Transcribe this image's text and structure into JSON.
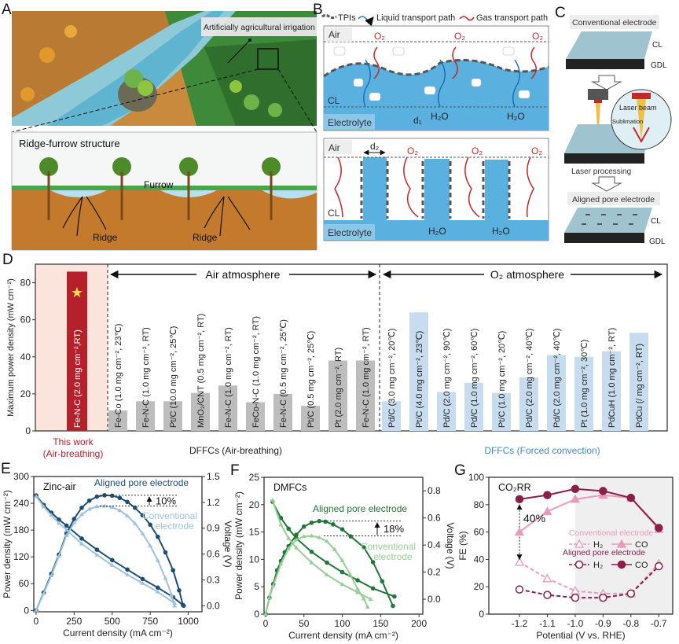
{
  "panels": {
    "A": {
      "letter": "A",
      "title": "Artificially agricultural irrigation",
      "inset_title": "Ridge-furrow structure",
      "furrow": "Furrow",
      "ridge_1": "Ridge",
      "ridge_2": "Ridge"
    },
    "B": {
      "letter": "B",
      "legend": {
        "tpi": "TPIs",
        "liquid": "Liquid transport path",
        "gas": "Gas transport path"
      },
      "top": {
        "air": "Air",
        "cl": "CL",
        "electrolyte": "Electrolyte",
        "o2": "O₂",
        "h2o": "H₂O",
        "d": "d₁"
      },
      "bottom": {
        "air": "Air",
        "cl": "CL",
        "electrolyte": "Electrolyte",
        "o2": "O₂",
        "h2o": "H₂O",
        "d": "d₂"
      }
    },
    "C": {
      "letter": "C",
      "conventional": "Conventional electrode",
      "cl": "CL",
      "gdl": "GDL",
      "laser_beam": "Laser beam",
      "sublimation": "Sublimation",
      "laser_processing": "Laser processing",
      "aligned": "Aligned pore electrode"
    },
    "D": {
      "letter": "D"
    },
    "E": {
      "letter": "E"
    },
    "F": {
      "letter": "F"
    },
    "G": {
      "letter": "G"
    }
  },
  "colors": {
    "this_work": "#b5202b",
    "this_work_bg": "#fbe4dc",
    "air": "#bdbdbd",
    "o2": "#c7dcee",
    "forced_text": "#3d8bc6",
    "zn_aligned": "#1d4e72",
    "zn_conv": "#9cc2df",
    "dm_aligned": "#23773a",
    "dm_conv": "#94cf94",
    "co2_aligned": "#8a1f4c",
    "co2_conv": "#e89bba"
  },
  "chart_data": [
    {
      "panel": "D",
      "type": "bar",
      "ylabel": "Maximum power density (mW cm⁻²)",
      "ylim": [
        0,
        90
      ],
      "yticks": [
        "0",
        "20",
        "40",
        "60",
        "80"
      ],
      "annotations": {
        "air": "Air atmosphere",
        "o2": "O₂ atmosphere",
        "this_work": "This work",
        "this_work_sub": "(Air-breathing)",
        "air_group": "DFFCs (Air-breathing)",
        "forced_group": "DFFCs (Forced convection)"
      },
      "bars": [
        {
          "label": "Fe-N-C (2.0 mg cm⁻²,RT)",
          "value": 86,
          "group": "this_work"
        },
        {
          "label": "Fe-Co (1.0 mg cm⁻², 23℃)",
          "value": 11,
          "group": "air"
        },
        {
          "label": "Fe-N-C (1.0 mg cm⁻², RT)",
          "value": 16,
          "group": "air"
        },
        {
          "label": "Pt/C (10.0 mg cm⁻², 25℃)",
          "value": 16,
          "group": "air"
        },
        {
          "label": "MnO₂/CNT (0.5 mg cm⁻², RT)",
          "value": 20.5,
          "group": "air"
        },
        {
          "label": "Fe-N-C (1.0 mg cm⁻², RT)",
          "value": 24.5,
          "group": "air"
        },
        {
          "label": "FeCo-N-C (1.0 mg cm⁻², RT)",
          "value": 15.5,
          "group": "air"
        },
        {
          "label": "Fe-N-C (0.5 mg cm⁻², 25℃)",
          "value": 20,
          "group": "air"
        },
        {
          "label": "Pt/C (0.5 mg cm⁻², 25℃)",
          "value": 13.5,
          "group": "air"
        },
        {
          "label": "Pt (2.0 mg cm⁻², RT)",
          "value": 38,
          "group": "air"
        },
        {
          "label": "Fe-N-C (1.0 mg cm⁻², RT)",
          "value": 38,
          "group": "air"
        },
        {
          "label": "Pd/C (3.0 mg cm⁻², 20℃)",
          "value": 16,
          "group": "o2"
        },
        {
          "label": "Pt/C (4.0 mg cm⁻², 23℃)",
          "value": 64,
          "group": "o2"
        },
        {
          "label": "Pd/C (2.0 mg cm⁻², 90℃)",
          "value": 21,
          "group": "o2"
        },
        {
          "label": "Pd/C (1.0 mg cm⁻², 60℃)",
          "value": 26,
          "group": "o2"
        },
        {
          "label": "Pt/C (1.0 mg cm⁻², 20℃)",
          "value": 20.5,
          "group": "o2"
        },
        {
          "label": "Pd/C (2.0 mg cm⁻², 40℃)",
          "value": 29,
          "group": "o2"
        },
        {
          "label": "Pd/C (2.0 mg cm⁻², 40℃)",
          "value": 41,
          "group": "o2"
        },
        {
          "label": "Pt (1.0 mg cm⁻², 30℃)",
          "value": 40,
          "group": "o2"
        },
        {
          "label": "PdCuH  (1.0 mg cm⁻², RT)",
          "value": 43,
          "group": "o2"
        },
        {
          "label": "PdCu  (/ mg cm⁻², RT)",
          "value": 53,
          "group": "o2"
        }
      ]
    },
    {
      "panel": "E",
      "type": "line",
      "title": "Zinc-air",
      "xlabel": "Current density (mA cm⁻²)",
      "ylabel": "Power density (mW cm⁻²)",
      "y2label": "Voltage (V)",
      "xlim": [
        -15,
        1090
      ],
      "ylim": [
        -3,
        300
      ],
      "y2lim": [
        -0.07,
        1.5
      ],
      "xticks": [
        "0",
        "250",
        "500",
        "750",
        "1000"
      ],
      "yticks": [
        "0",
        "60",
        "120",
        "180",
        "240",
        "300"
      ],
      "y2ticks": [
        "0.0",
        "0.3",
        "0.6",
        "0.9",
        "1.2",
        "1.5"
      ],
      "annotations": {
        "aligned": "Aligned pore electrode",
        "conv_1": "Conventional",
        "conv_2": "electrode",
        "gain": "10%"
      },
      "series": [
        {
          "name": "Aligned power",
          "axis": "left",
          "style": "aligned",
          "points": [
            [
              0,
              0
            ],
            [
              50,
              40
            ],
            [
              100,
              82
            ],
            [
              150,
              125
            ],
            [
              200,
              172
            ],
            [
              250,
              205
            ],
            [
              300,
              230
            ],
            [
              350,
              246
            ],
            [
              400,
              255
            ],
            [
              450,
              258
            ],
            [
              500,
              257
            ],
            [
              550,
              252
            ],
            [
              600,
              243
            ],
            [
              650,
              230
            ],
            [
              700,
              213
            ],
            [
              750,
              192
            ],
            [
              800,
              165
            ],
            [
              850,
              130
            ],
            [
              900,
              90
            ],
            [
              940,
              45
            ],
            [
              965,
              12
            ]
          ]
        },
        {
          "name": "Aligned voltage",
          "axis": "right",
          "style": "aligned",
          "points": [
            [
              0,
              1.28
            ],
            [
              50,
              1.17
            ],
            [
              100,
              1.08
            ],
            [
              150,
              1.0
            ],
            [
              200,
              0.93
            ],
            [
              300,
              0.78
            ],
            [
              400,
              0.65
            ],
            [
              500,
              0.53
            ],
            [
              600,
              0.42
            ],
            [
              700,
              0.31
            ],
            [
              800,
              0.21
            ],
            [
              900,
              0.1
            ],
            [
              970,
              0.0
            ]
          ]
        },
        {
          "name": "Conventional power",
          "axis": "left",
          "style": "conv",
          "points": [
            [
              0,
              0
            ],
            [
              50,
              38
            ],
            [
              100,
              78
            ],
            [
              150,
              122
            ],
            [
              200,
              168
            ],
            [
              250,
              196
            ],
            [
              300,
              215
            ],
            [
              350,
              227
            ],
            [
              400,
              233
            ],
            [
              450,
              234
            ],
            [
              500,
              231
            ],
            [
              550,
              224
            ],
            [
              600,
              212
            ],
            [
              650,
              195
            ],
            [
              700,
              172
            ],
            [
              750,
              145
            ],
            [
              800,
              112
            ],
            [
              850,
              72
            ],
            [
              890,
              35
            ],
            [
              910,
              10
            ]
          ]
        },
        {
          "name": "Conventional voltage",
          "axis": "right",
          "style": "conv",
          "points": [
            [
              0,
              1.27
            ],
            [
              50,
              1.15
            ],
            [
              100,
              1.05
            ],
            [
              150,
              0.96
            ],
            [
              200,
              0.88
            ],
            [
              300,
              0.72
            ],
            [
              400,
              0.59
            ],
            [
              500,
              0.47
            ],
            [
              600,
              0.36
            ],
            [
              700,
              0.26
            ],
            [
              800,
              0.16
            ],
            [
              910,
              0.03
            ]
          ]
        }
      ]
    },
    {
      "panel": "F",
      "type": "line",
      "title": "DMFCs",
      "xlabel": "Current density (mA cm⁻²)",
      "ylabel": "Power density (mW cm⁻²)",
      "y2label": "Voltage (V)",
      "xlim": [
        -2,
        205
      ],
      "ylim": [
        0,
        25
      ],
      "y2lim": [
        -0.11,
        0.9
      ],
      "xticks": [
        "0",
        "50",
        "100",
        "150",
        "200"
      ],
      "yticks": [
        "0",
        "5",
        "10",
        "15",
        "20",
        "25"
      ],
      "y2ticks": [
        "0.0",
        "0.2",
        "0.4",
        "0.6",
        "0.8"
      ],
      "annotations": {
        "aligned": "Aligned pore electrode",
        "conv_1": "Conventional",
        "conv_2": "electrode",
        "gain": "18%"
      },
      "series": [
        {
          "name": "Aligned power",
          "axis": "left",
          "style": "aligned",
          "points": [
            [
              0,
              0
            ],
            [
              5,
              3
            ],
            [
              10,
              5.5
            ],
            [
              15,
              8
            ],
            [
              20,
              9.7
            ],
            [
              25,
              11.3
            ],
            [
              30,
              12.4
            ],
            [
              40,
              14.5
            ],
            [
              50,
              16
            ],
            [
              60,
              16.7
            ],
            [
              70,
              17
            ],
            [
              78,
              16.9
            ],
            [
              88,
              16.4
            ],
            [
              100,
              15.5
            ],
            [
              111,
              14.2
            ],
            [
              128,
              12.2
            ],
            [
              140,
              9.5
            ],
            [
              152,
              6
            ],
            [
              166,
              1.5
            ]
          ]
        },
        {
          "name": "Aligned voltage",
          "axis": "right",
          "style": "aligned",
          "points": [
            [
              9,
              0.72
            ],
            [
              20,
              0.6
            ],
            [
              30,
              0.52
            ],
            [
              40,
              0.45
            ],
            [
              60,
              0.35
            ],
            [
              80,
              0.27
            ],
            [
              100,
              0.2
            ],
            [
              120,
              0.14
            ],
            [
              140,
              0.08
            ],
            [
              168,
              0.02
            ]
          ]
        },
        {
          "name": "Conventional power",
          "axis": "left",
          "style": "conv",
          "points": [
            [
              0,
              0
            ],
            [
              5,
              3
            ],
            [
              10,
              5.2
            ],
            [
              20,
              9.2
            ],
            [
              30,
              12
            ],
            [
              40,
              13.6
            ],
            [
              50,
              14.2
            ],
            [
              60,
              14.3
            ],
            [
              70,
              14
            ],
            [
              80,
              13.3
            ],
            [
              90,
              11.8
            ],
            [
              100,
              9.8
            ],
            [
              110,
              7.3
            ],
            [
              120,
              4.6
            ],
            [
              128,
              2.8
            ],
            [
              133,
              1.3
            ]
          ]
        },
        {
          "name": "Conventional voltage",
          "axis": "right",
          "style": "conv",
          "points": [
            [
              9,
              0.73
            ],
            [
              20,
              0.55
            ],
            [
              30,
              0.45
            ],
            [
              40,
              0.38
            ],
            [
              60,
              0.27
            ],
            [
              80,
              0.18
            ],
            [
              100,
              0.11
            ],
            [
              120,
              0.05
            ],
            [
              137,
              0.0
            ]
          ]
        }
      ]
    },
    {
      "panel": "G",
      "type": "line",
      "title": "CO₂RR",
      "xlabel": "Potential (V vs. RHE)",
      "ylabel": "FE (%)",
      "xlim": [
        -1.31,
        -0.65
      ],
      "ylim": [
        0,
        100
      ],
      "shaded_from": -1.0,
      "xticks": [
        "-1.2",
        "-1.1",
        "-1.0",
        "-0.9",
        "-0.8",
        "-0.7"
      ],
      "yticks": [
        "0",
        "20",
        "40",
        "60",
        "80",
        "100"
      ],
      "annotations": {
        "gain": "40%",
        "conv_legend": "Conventional electrode",
        "aligned_legend": "Aligned pore electrode",
        "h2": "H₂",
        "co": "CO"
      },
      "x": [
        -1.2,
        -1.1,
        -1.0,
        -0.9,
        -0.8,
        -0.7
      ],
      "series": [
        {
          "name": "Conventional H₂",
          "style": "conv",
          "marker": "triangle-open",
          "dashed": true,
          "values": [
            38,
            26,
            17,
            15,
            15,
            37
          ]
        },
        {
          "name": "Conventional CO",
          "style": "conv",
          "marker": "triangle",
          "dashed": false,
          "values": [
            60,
            75,
            84,
            87,
            85,
            62
          ]
        },
        {
          "name": "Aligned H₂",
          "style": "aligned",
          "marker": "circle-open",
          "dashed": true,
          "values": [
            18,
            14,
            12,
            12,
            15,
            35
          ]
        },
        {
          "name": "Aligned CO",
          "style": "aligned",
          "marker": "circle",
          "dashed": false,
          "values": [
            84,
            87,
            91.5,
            90,
            85,
            63
          ]
        }
      ]
    }
  ]
}
